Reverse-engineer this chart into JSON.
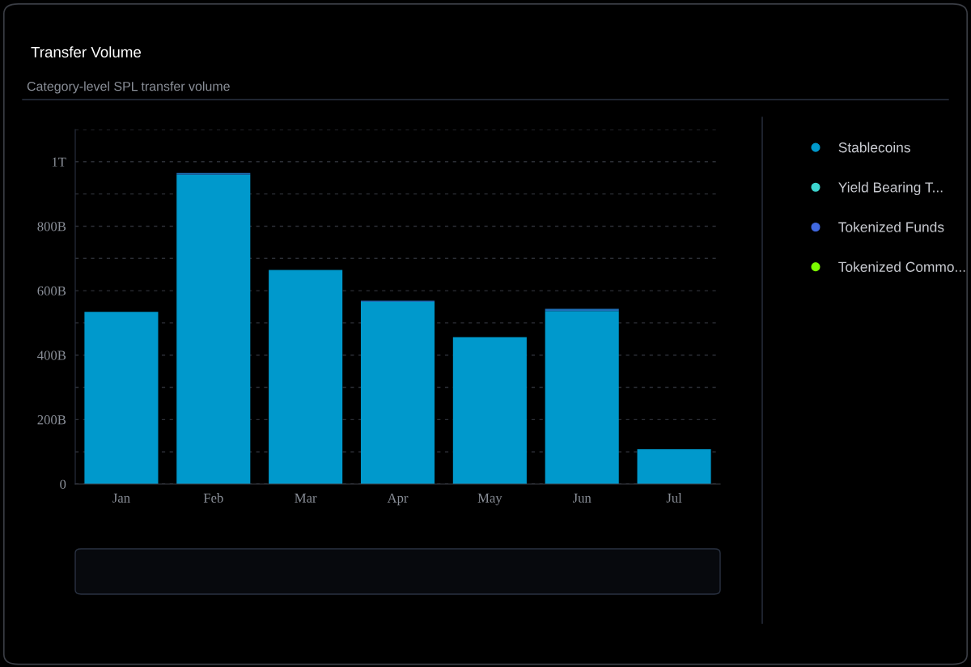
{
  "chart_data": {
    "type": "bar",
    "title": "Transfer Volume",
    "subtitle": "Category-level SPL transfer volume",
    "categories": [
      "Jan",
      "Feb",
      "Mar",
      "Apr",
      "May",
      "Jun",
      "Jul"
    ],
    "stacked": true,
    "series": [
      {
        "name": "Stablecoins",
        "color": "#0099cc",
        "values": [
          534000000000,
          960000000000,
          664000000000,
          565000000000,
          456000000000,
          537000000000,
          108000000000
        ]
      },
      {
        "color": "#1f6fb8",
        "values": [
          0,
          5000000000,
          0,
          4000000000,
          0,
          7000000000,
          0
        ]
      },
      {
        "name": "Yield Bearing T...",
        "color": "#3dd6d0",
        "values": [
          0,
          0,
          0,
          0,
          0,
          0,
          0
        ]
      },
      {
        "name": "Tokenized Funds",
        "color": "#4169e1",
        "values": [
          0,
          0,
          0,
          0,
          0,
          0,
          0
        ]
      },
      {
        "color": "#2ecc40",
        "values": [
          0,
          0,
          0,
          0,
          0,
          0,
          0
        ]
      },
      {
        "name": "Tokenized Commo...",
        "color": "#7cfc00",
        "values": [
          0,
          0,
          0,
          0,
          0,
          0,
          0
        ]
      }
    ],
    "ylim": [
      0,
      1100000000000
    ],
    "yticks": [
      0,
      {
        "value": 100000000000,
        "label": null
      },
      {
        "value": 200000000000,
        "label": "200B"
      },
      {
        "value": 300000000000,
        "label": null
      },
      {
        "value": 400000000000,
        "label": "400B"
      },
      {
        "value": 500000000000,
        "label": null
      },
      {
        "value": 600000000000,
        "label": "600B"
      },
      {
        "value": 700000000000,
        "label": null
      },
      {
        "value": 800000000000,
        "label": "800B"
      },
      {
        "value": 900000000000,
        "label": null
      },
      {
        "value": 1000000000000,
        "label": "1T"
      },
      {
        "value": 1100000000000,
        "label": null
      }
    ],
    "grid": "y",
    "legend": "right"
  }
}
